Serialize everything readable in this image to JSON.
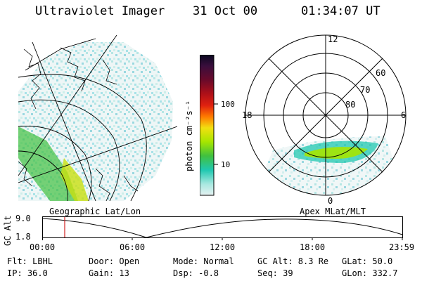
{
  "header": {
    "instrument": "Ultraviolet Imager",
    "date": "31 Oct 00",
    "time": "01:34:07 UT"
  },
  "colorbar": {
    "ticks": [
      "100",
      "10"
    ],
    "unit": "photon cm⁻²s⁻¹",
    "colors": [
      "#0a0820",
      "#3a0e3c",
      "#6a0a2a",
      "#b01018",
      "#e02010",
      "#ff7a00",
      "#f2e010",
      "#a6e600",
      "#40c040",
      "#20c8b0",
      "#a8e8e0",
      "#e6f2f2"
    ]
  },
  "panels": {
    "left_label": "Geographic Lat/Lon",
    "right_label": "Apex MLat/MLT"
  },
  "polar": {
    "mlt_labels": [
      "12",
      "18",
      "6",
      "0"
    ],
    "mlat_labels": [
      "60",
      "70",
      "80"
    ]
  },
  "altitude_plot": {
    "ylabel": "GC Alt",
    "yticks": [
      "9.0",
      "1.8"
    ],
    "xticks": [
      "00:00",
      "06:00",
      "12:00",
      "18:00",
      "23:59"
    ],
    "cursor_color": "#d02020"
  },
  "params": {
    "filter": "Flt: LBHL",
    "ip": "IP: 36.0",
    "door": "Door: Open",
    "gain": "Gain: 13",
    "mode": "Mode: Normal",
    "dsp": "Dsp:   -0.8",
    "gc_alt": "GC Alt: 8.3 Re",
    "seq": "Seq: 39",
    "glat": "GLat:  50.0",
    "glon": "GLon: 332.7"
  }
}
